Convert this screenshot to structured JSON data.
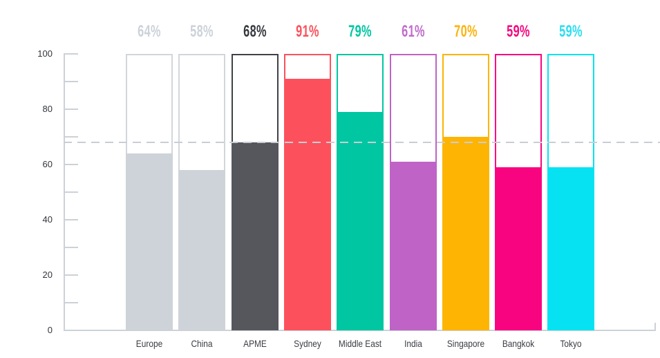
{
  "chart_data": {
    "type": "bar",
    "title": "",
    "categories": [
      "Europe",
      "China",
      "APME",
      "Sydney",
      "Middle East",
      "India",
      "Singapore",
      "Bangkok",
      "Tokyo"
    ],
    "values": [
      64,
      58,
      68,
      91,
      79,
      61,
      70,
      59,
      59
    ],
    "value_labels": [
      "64%",
      "58%",
      "68%",
      "91%",
      "79%",
      "61%",
      "70%",
      "59%",
      "59%"
    ],
    "colors": {
      "fill": [
        "#ced3d9",
        "#ced3d9",
        "#55575c",
        "#fc515c",
        "#01c6a2",
        "#bf63c6",
        "#fdb402",
        "#f90480",
        "#06e2f2"
      ],
      "outline": [
        "#d2d6db",
        "#d2d6db",
        "#3f4146",
        "#fc515c",
        "#01c6a2",
        "#bf63c6",
        "#fdb402",
        "#f90480",
        "#06e2f2"
      ],
      "label": [
        "#ccd2d9",
        "#ccd2d9",
        "#34373c",
        "#fc515c",
        "#01c6a2",
        "#c06cca",
        "#fcb30b",
        "#f5077f",
        "#2bdef0"
      ]
    },
    "xlabel": "",
    "ylabel": "",
    "ylim": [
      0,
      100
    ],
    "y_axis": {
      "tick_labels": [
        "0",
        "20",
        "40",
        "60",
        "80",
        "100"
      ],
      "minor_tick_step": 10,
      "line_color": "#ccd1d7",
      "label_color": "#31343a"
    },
    "reference_line": {
      "value": 68.2,
      "style": "dashed",
      "color": "#c9ced5"
    },
    "bar_outline_to": 100,
    "grid": false,
    "legend": false
  }
}
